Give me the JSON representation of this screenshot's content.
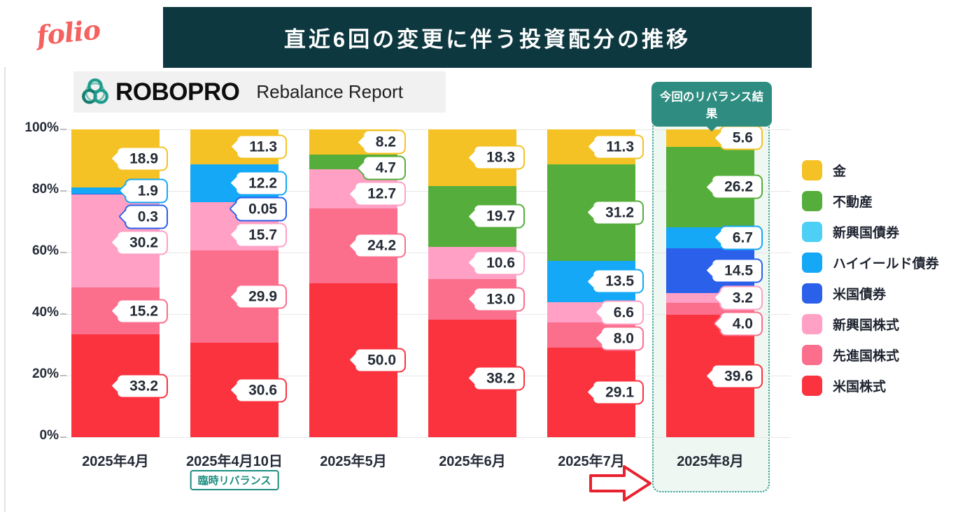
{
  "header": {
    "logo_text": "folio",
    "banner_title": "直近6回の変更に伴う投資配分の推移"
  },
  "report_header": {
    "brand": "ROBOPRO",
    "subtitle": "Rebalance Report",
    "brand_icon": "robopro-knot-icon"
  },
  "colors": {
    "banner_bg": "#0E3840",
    "logo_coral": "#F4615F",
    "callout_teal": "#2F8C81",
    "highlight_border": "#2A9D8F",
    "highlight_bg": "#EEF7F1",
    "note_teal": "#1B8D80",
    "arrow_red": "#E8212E",
    "grid": "#E7E7E7",
    "text_dark": "#252B37"
  },
  "chart_data": {
    "type": "bar",
    "stacked": true,
    "unit": "%",
    "ylim": [
      0,
      100
    ],
    "grid": true,
    "y_ticks": [
      "100%",
      "80%",
      "60%",
      "40%",
      "20%",
      "0%"
    ],
    "legend_position": "right",
    "highlight_label": "今回のリバランス結果",
    "highlight_column": "2025年8月",
    "legend": [
      {
        "name": "金",
        "color": "#F4C224"
      },
      {
        "name": "不動産",
        "color": "#55AE3B"
      },
      {
        "name": "新興国債券",
        "color": "#4ED0F6"
      },
      {
        "name": "ハイイールド債券",
        "color": "#14A8F6"
      },
      {
        "name": "米国債券",
        "color": "#2B60EA"
      },
      {
        "name": "新興国株式",
        "color": "#FFA0C4"
      },
      {
        "name": "先進国株式",
        "color": "#FB6E8C"
      },
      {
        "name": "米国株式",
        "color": "#FB333F"
      }
    ],
    "categories": [
      "2025年4月",
      "2025年4月10日",
      "2025年5月",
      "2025年6月",
      "2025年7月",
      "2025年8月"
    ],
    "columns": [
      {
        "label": "2025年4月",
        "segments": [
          {
            "name": "米国株式",
            "value": 33.2,
            "display": "33.2"
          },
          {
            "name": "先進国株式",
            "value": 15.2,
            "display": "15.2"
          },
          {
            "name": "新興国株式",
            "value": 30.2,
            "display": "30.2"
          },
          {
            "name": "米国債券",
            "value": 0.3,
            "display": "0.3"
          },
          {
            "name": "ハイイールド債券",
            "value": 1.9,
            "display": "1.9"
          },
          {
            "name": "金",
            "value": 18.9,
            "display": "18.9"
          }
        ]
      },
      {
        "label": "2025年4月10日",
        "note": "臨時リバランス",
        "segments": [
          {
            "name": "米国株式",
            "value": 30.6,
            "display": "30.6"
          },
          {
            "name": "先進国株式",
            "value": 29.9,
            "display": "29.9"
          },
          {
            "name": "新興国株式",
            "value": 15.7,
            "display": "15.7"
          },
          {
            "name": "米国債券",
            "value": 0.05,
            "display": "0.05"
          },
          {
            "name": "ハイイールド債券",
            "value": 12.2,
            "display": "12.2"
          },
          {
            "name": "金",
            "value": 11.3,
            "display": "11.3"
          }
        ]
      },
      {
        "label": "2025年5月",
        "segments": [
          {
            "name": "米国株式",
            "value": 50.0,
            "display": "50.0"
          },
          {
            "name": "先進国株式",
            "value": 24.2,
            "display": "24.2"
          },
          {
            "name": "新興国株式",
            "value": 12.7,
            "display": "12.7"
          },
          {
            "name": "不動産",
            "value": 4.7,
            "display": "4.7"
          },
          {
            "name": "金",
            "value": 8.2,
            "display": "8.2"
          }
        ]
      },
      {
        "label": "2025年6月",
        "segments": [
          {
            "name": "米国株式",
            "value": 38.2,
            "display": "38.2"
          },
          {
            "name": "先進国株式",
            "value": 13.0,
            "display": "13.0"
          },
          {
            "name": "新興国株式",
            "value": 10.6,
            "display": "10.6"
          },
          {
            "name": "不動産",
            "value": 19.7,
            "display": "19.7"
          },
          {
            "name": "金",
            "value": 18.3,
            "display": "18.3"
          }
        ]
      },
      {
        "label": "2025年7月",
        "segments": [
          {
            "name": "米国株式",
            "value": 29.1,
            "display": "29.1"
          },
          {
            "name": "先進国株式",
            "value": 8.0,
            "display": "8.0"
          },
          {
            "name": "新興国株式",
            "value": 6.6,
            "display": "6.6"
          },
          {
            "name": "ハイイールド債券",
            "value": 13.5,
            "display": "13.5"
          },
          {
            "name": "不動産",
            "value": 31.2,
            "display": "31.2"
          },
          {
            "name": "金",
            "value": 11.3,
            "display": "11.3"
          }
        ]
      },
      {
        "label": "2025年8月",
        "highlight": true,
        "segments": [
          {
            "name": "米国株式",
            "value": 39.6,
            "display": "39.6"
          },
          {
            "name": "先進国株式",
            "value": 4.0,
            "display": "4.0"
          },
          {
            "name": "新興国株式",
            "value": 3.2,
            "display": "3.2"
          },
          {
            "name": "米国債券",
            "value": 14.5,
            "display": "14.5"
          },
          {
            "name": "ハイイールド債券",
            "value": 6.7,
            "display": "6.7"
          },
          {
            "name": "不動産",
            "value": 26.2,
            "display": "26.2"
          },
          {
            "name": "金",
            "value": 5.6,
            "display": "5.6"
          }
        ]
      }
    ]
  }
}
